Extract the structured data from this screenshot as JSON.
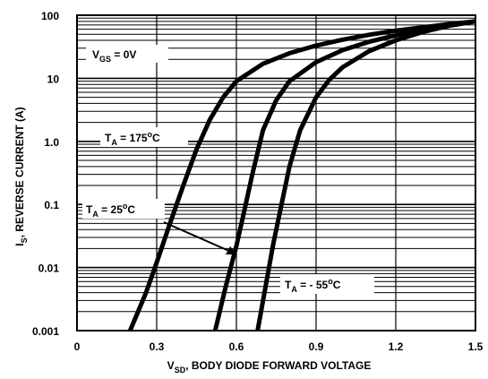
{
  "chart_data": {
    "type": "line",
    "xlabel": {
      "main": "V",
      "sub": "SD",
      "rest": ", BODY DIODE FORWARD VOLTAGE"
    },
    "ylabel": {
      "main": "I",
      "sub": "S",
      "rest": ", REVERSE CURRENT (A)"
    },
    "xlim": [
      0,
      1.5
    ],
    "ylim": [
      0.001,
      100
    ],
    "yscale": "log",
    "grid": true,
    "x_ticks": [
      {
        "value": 0,
        "label": "0"
      },
      {
        "value": 0.3,
        "label": "0.3"
      },
      {
        "value": 0.6,
        "label": "0.6"
      },
      {
        "value": 0.9,
        "label": "0.9"
      },
      {
        "value": 1.2,
        "label": "1.2"
      },
      {
        "value": 1.5,
        "label": "1.5"
      }
    ],
    "y_ticks": [
      {
        "value": 100,
        "label": "100"
      },
      {
        "value": 10,
        "label": "10"
      },
      {
        "value": 1,
        "label": "1.0"
      },
      {
        "value": 0.1,
        "label": "0.1"
      },
      {
        "value": 0.01,
        "label": "0.01"
      },
      {
        "value": 0.001,
        "label": "0.001"
      }
    ],
    "series": [
      {
        "x": [
          0.2,
          0.26,
          0.3,
          0.35,
          0.4,
          0.45,
          0.5,
          0.55,
          0.6,
          0.7,
          0.8,
          0.9,
          1.0,
          1.1,
          1.2,
          1.3,
          1.4,
          1.5
        ],
        "y": [
          0.001,
          0.004,
          0.012,
          0.05,
          0.2,
          0.75,
          2.2,
          5.0,
          9.0,
          17,
          25,
          33,
          41,
          49,
          57,
          64,
          72,
          80
        ]
      },
      {
        "x": [
          0.52,
          0.56,
          0.6,
          0.63,
          0.66,
          0.7,
          0.75,
          0.8,
          0.9,
          1.0,
          1.1,
          1.2,
          1.3,
          1.4,
          1.5
        ],
        "y": [
          0.001,
          0.005,
          0.022,
          0.08,
          0.3,
          1.5,
          4.5,
          9.0,
          18,
          28,
          38,
          48,
          60,
          70,
          80
        ]
      },
      {
        "x": [
          0.68,
          0.71,
          0.74,
          0.77,
          0.8,
          0.84,
          0.9,
          0.95,
          1.0,
          1.1,
          1.2,
          1.3,
          1.4,
          1.5
        ],
        "y": [
          0.001,
          0.005,
          0.025,
          0.1,
          0.4,
          1.5,
          5.0,
          9.5,
          15,
          27,
          40,
          54,
          68,
          80
        ]
      }
    ],
    "annotations": [
      {
        "main": "V",
        "sub": "GS",
        "rest": " = 0V"
      },
      {
        "main": "T",
        "sub": "A",
        "rest": " = 175",
        "sup": "o",
        "tail": "C"
      },
      {
        "main": "T",
        "sub": "A",
        "rest": " = 25",
        "sup": "o",
        "tail": "C"
      },
      {
        "main": "T",
        "sub": "A",
        "rest": " = - 55",
        "sup": "o",
        "tail": "C"
      }
    ]
  }
}
